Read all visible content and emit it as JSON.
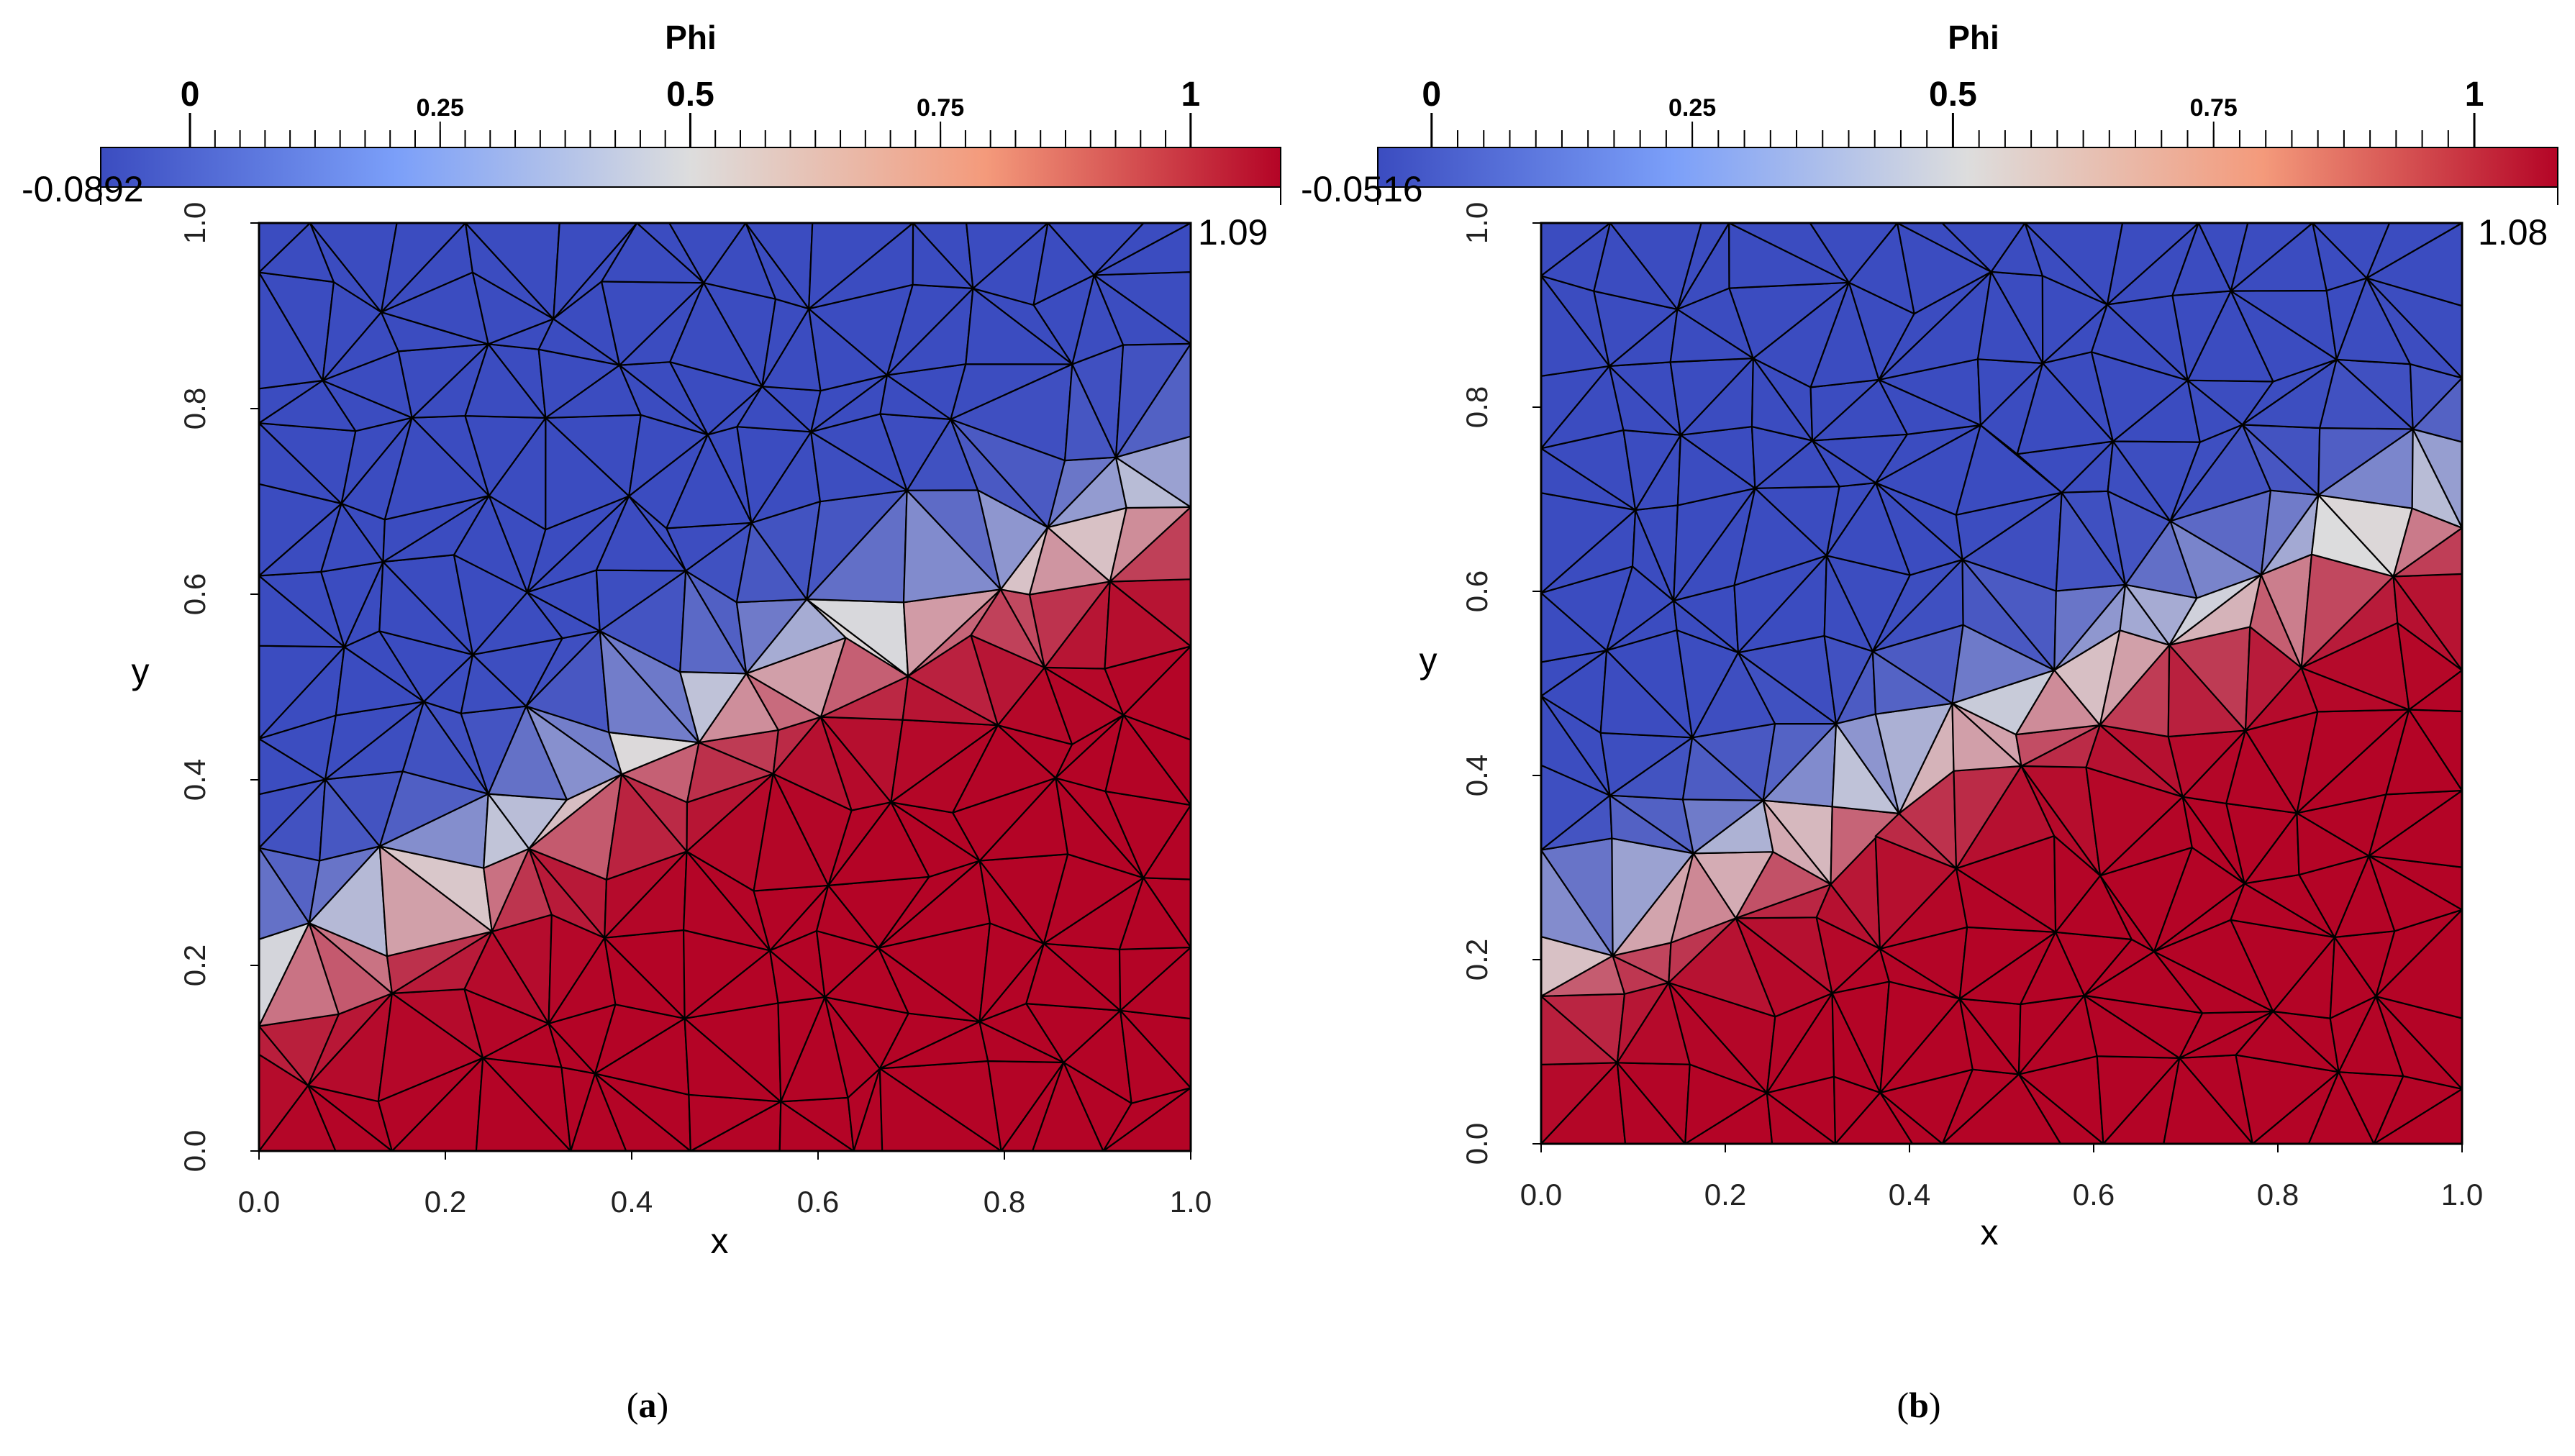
{
  "panels": [
    {
      "caption_letter": "a",
      "colorbar": {
        "title": "Phi",
        "range_min_label": "-0.0892",
        "range_max_label": "1.09",
        "range": [
          -0.0892,
          1.09
        ],
        "major_ticks": [
          {
            "value": 0,
            "label": "0"
          },
          {
            "value": 0.5,
            "label": "0.5"
          },
          {
            "value": 1,
            "label": "1"
          }
        ],
        "minor_labeled_ticks": [
          {
            "value": 0.25,
            "label": "0.25"
          },
          {
            "value": 0.75,
            "label": "0.75"
          }
        ],
        "colormap": "Cool to Warm",
        "color_stops": [
          "#3b4cc0",
          "#dddddd",
          "#b40426"
        ]
      },
      "axes": {
        "xlabel": "x",
        "ylabel": "y",
        "xticks": [
          "0.0",
          "0.2",
          "0.4",
          "0.6",
          "0.8",
          "1.0"
        ],
        "yticks": [
          "0.0",
          "0.2",
          "0.4",
          "0.6",
          "0.8",
          "1.0"
        ],
        "xlim": [
          0,
          1
        ],
        "ylim": [
          0,
          1
        ]
      }
    },
    {
      "caption_letter": "b",
      "colorbar": {
        "title": "Phi",
        "range_min_label": "-0.0516",
        "range_max_label": "1.08",
        "range": [
          -0.0516,
          1.08
        ],
        "major_ticks": [
          {
            "value": 0,
            "label": "0"
          },
          {
            "value": 0.5,
            "label": "0.5"
          },
          {
            "value": 1,
            "label": "1"
          }
        ],
        "minor_labeled_ticks": [
          {
            "value": 0.25,
            "label": "0.25"
          },
          {
            "value": 0.75,
            "label": "0.75"
          }
        ],
        "colormap": "Cool to Warm",
        "color_stops": [
          "#3b4cc0",
          "#dddddd",
          "#b40426"
        ]
      },
      "axes": {
        "xlabel": "x",
        "ylabel": "y",
        "xticks": [
          "0.0",
          "0.2",
          "0.4",
          "0.6",
          "0.8",
          "1.0"
        ],
        "yticks": [
          "0.0",
          "0.2",
          "0.4",
          "0.6",
          "0.8",
          "1.0"
        ],
        "xlim": [
          0,
          1
        ],
        "ylim": [
          0,
          1
        ]
      }
    }
  ],
  "chart_data": [
    {
      "type": "heatmap",
      "subtype": "triangulated mesh contour",
      "title": "Phi",
      "xlabel": "x",
      "ylabel": "y",
      "xlim": [
        0,
        1
      ],
      "ylim": [
        0,
        1
      ],
      "color_range": [
        -0.0892,
        1.09
      ],
      "interface": {
        "x": [
          0.0,
          0.1,
          0.25,
          0.45,
          0.6,
          0.75,
          0.9,
          1.0
        ],
        "y": [
          0.19,
          0.24,
          0.32,
          0.46,
          0.54,
          0.6,
          0.67,
          0.72
        ]
      },
      "series": [
        {
          "name": "Phi",
          "values": [
            0,
            1
          ]
        }
      ]
    },
    {
      "type": "heatmap",
      "subtype": "triangulated mesh contour",
      "title": "Phi",
      "xlabel": "x",
      "ylabel": "y",
      "xlim": [
        0,
        1
      ],
      "ylim": [
        0,
        1
      ],
      "color_range": [
        -0.0516,
        1.08
      ],
      "interface": {
        "x": [
          0.0,
          0.1,
          0.25,
          0.45,
          0.6,
          0.75,
          0.9,
          1.0
        ],
        "y": [
          0.19,
          0.25,
          0.33,
          0.44,
          0.52,
          0.59,
          0.67,
          0.71
        ]
      },
      "series": [
        {
          "name": "Phi",
          "values": [
            0,
            1
          ]
        }
      ]
    }
  ]
}
